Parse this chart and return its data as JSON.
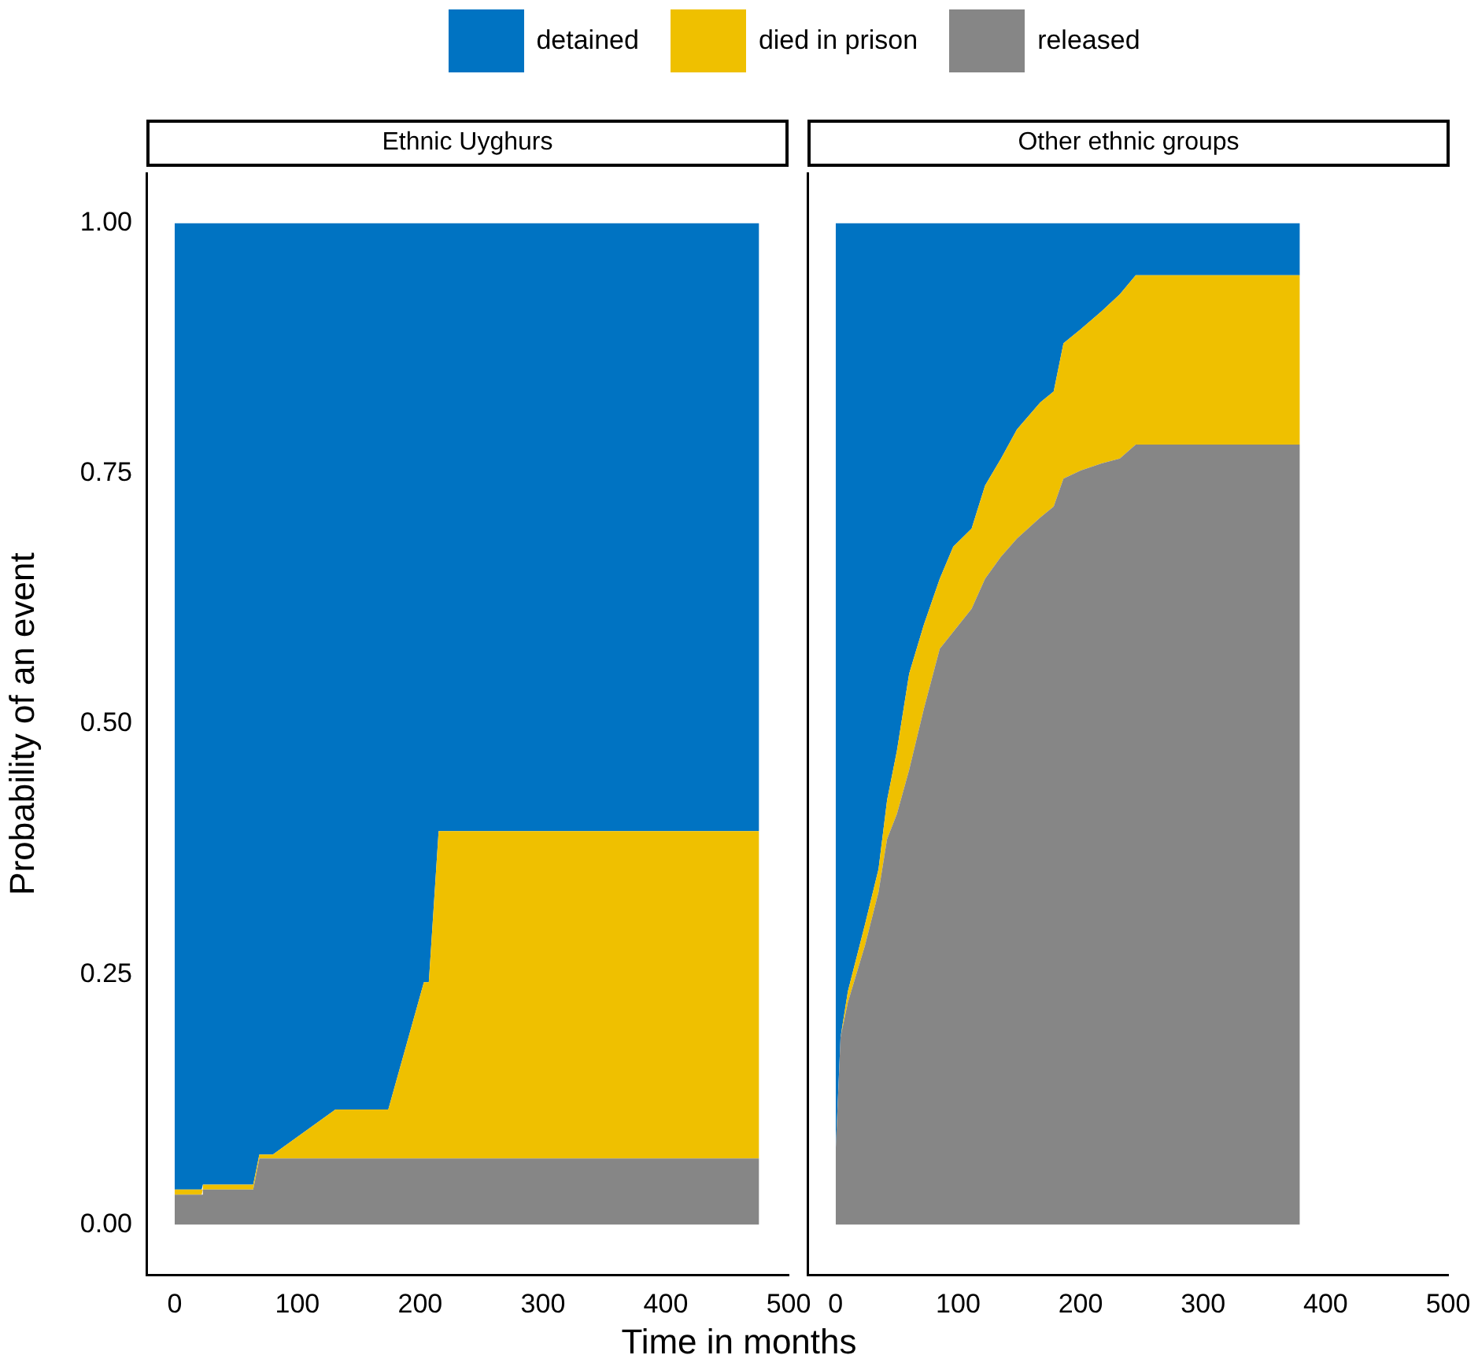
{
  "chart_data": [
    {
      "type": "area",
      "title": "Ethnic Uyghurs",
      "xlabel": "Time in months",
      "ylabel": "Probability of an event",
      "stacked": true,
      "legend": "top",
      "x": [
        0,
        22,
        23,
        64,
        69,
        80,
        131,
        174,
        203,
        207,
        215,
        476
      ],
      "series": [
        {
          "name": "released",
          "color": "#868686",
          "values": [
            0.03,
            0.03,
            0.035,
            0.035,
            0.066,
            0.066,
            0.066,
            0.066,
            0.066,
            0.066,
            0.066,
            0.066
          ]
        },
        {
          "name": "died in prison",
          "color": "#efc000",
          "values": [
            0.005,
            0.005,
            0.005,
            0.005,
            0.004,
            0.004,
            0.049,
            0.049,
            0.176,
            0.176,
            0.327,
            0.327
          ]
        },
        {
          "name": "detained",
          "color": "#0073c2",
          "values": [
            0.965,
            0.965,
            0.96,
            0.96,
            0.93,
            0.93,
            0.885,
            0.885,
            0.758,
            0.758,
            0.607,
            0.607
          ]
        }
      ],
      "xlim": [
        -23,
        500
      ],
      "xticks": [
        0,
        100,
        200,
        300,
        400,
        500
      ],
      "ylim": [
        -0.05,
        1.05
      ],
      "yticks": [
        {
          "value": 0,
          "label": "0.00"
        },
        {
          "value": 0.25,
          "label": "0.25"
        },
        {
          "value": 0.5,
          "label": "0.50"
        },
        {
          "value": 0.75,
          "label": "0.75"
        },
        {
          "value": 1,
          "label": "1.00"
        }
      ]
    },
    {
      "type": "area",
      "title": "Other ethnic groups",
      "stacked": true,
      "tick_labels": "x",
      "x": [
        0,
        4,
        10,
        24,
        35,
        42,
        50,
        60,
        72,
        85,
        96,
        111,
        122,
        135,
        148,
        167,
        178,
        186,
        200,
        217,
        232,
        245,
        379
      ],
      "series": [
        {
          "color": "#868686",
          "values": [
            0.073,
            0.187,
            0.222,
            0.279,
            0.332,
            0.385,
            0.41,
            0.454,
            0.515,
            0.575,
            0.592,
            0.615,
            0.645,
            0.667,
            0.685,
            0.706,
            0.717,
            0.745,
            0.753,
            0.76,
            0.765,
            0.779,
            0.779
          ]
        },
        {
          "color": "#efc000",
          "values": [
            0,
            0,
            0.011,
            0.021,
            0.023,
            0.039,
            0.063,
            0.096,
            0.084,
            0.07,
            0.085,
            0.08,
            0.093,
            0.098,
            0.109,
            0.115,
            0.115,
            0.135,
            0.141,
            0.152,
            0.164,
            0.169,
            0.169
          ]
        },
        {
          "color": "#0073c2",
          "values": [
            0.927,
            0.813,
            0.767,
            0.7,
            0.645,
            0.576,
            0.527,
            0.45,
            0.401,
            0.355,
            0.323,
            0.305,
            0.262,
            0.235,
            0.206,
            0.179,
            0.168,
            0.12,
            0.106,
            0.088,
            0.071,
            0.052,
            0.052
          ]
        }
      ],
      "xlim": [
        -23,
        500
      ],
      "xticks": [
        0,
        100,
        200,
        300,
        400,
        500
      ],
      "ylim": [
        -0.05,
        1.05
      ]
    }
  ]
}
